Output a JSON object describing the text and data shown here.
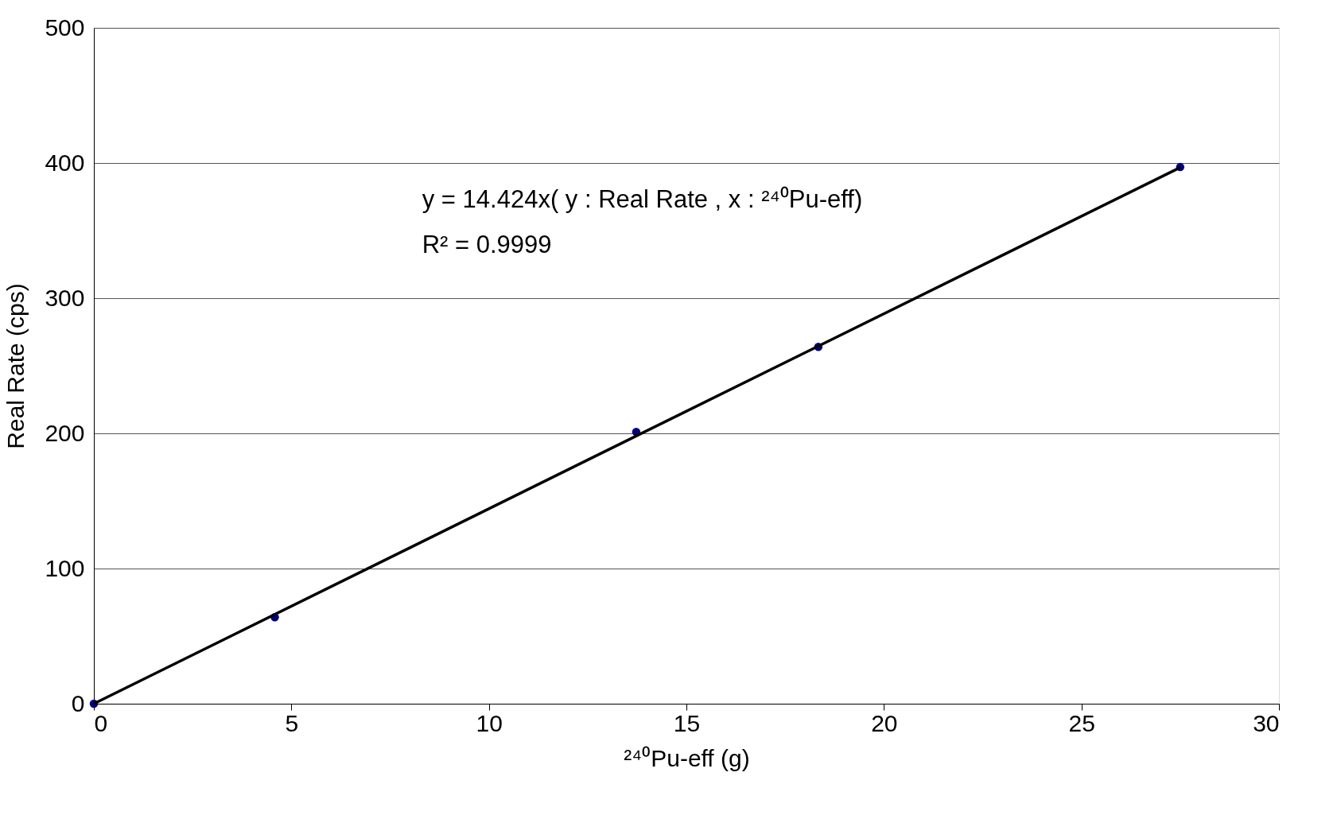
{
  "chart_data": {
    "type": "scatter",
    "xlabel": "²⁴⁰Pu-eff (g)",
    "ylabel": "Real Rate (cps)",
    "xlim": [
      0,
      30
    ],
    "xticks": [
      0,
      5,
      10,
      15,
      20,
      25,
      30
    ],
    "ylim": [
      0,
      500
    ],
    "yticks": [
      0,
      100,
      200,
      300,
      400,
      500
    ],
    "grid": "y",
    "marker": "circle",
    "series": [
      {
        "color": "#000080",
        "x": [
          0,
          4.58,
          13.73,
          18.34,
          27.5
        ],
        "values": [
          0,
          64,
          201,
          264,
          397
        ]
      },
      {
        "type": "line",
        "color": "#000000",
        "x": [
          0,
          27.5
        ],
        "values": [
          0,
          396.7
        ],
        "line_style": "solid",
        "marker": "none"
      }
    ],
    "annotations": [
      "y = 14.424x( y : Real Rate , x : ²⁴⁰Pu-eff)",
      "R² = 0.9999"
    ]
  }
}
